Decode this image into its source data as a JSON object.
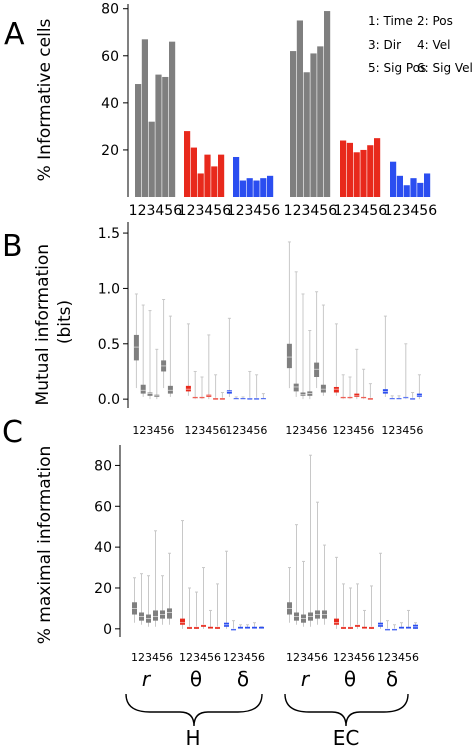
{
  "panels": {
    "a": "A",
    "b": "B",
    "c": "C"
  },
  "legend": [
    "1: Time",
    "2: Pos",
    "3: Dir",
    "4: Vel",
    "5: Sig Pos",
    "6: Sig Vel"
  ],
  "bottom_labels": {
    "group_symbols": [
      "r",
      "θ",
      "δ",
      "r",
      "θ",
      "δ"
    ],
    "regions": [
      "H",
      "EC"
    ]
  },
  "colors": {
    "r": "#7f7f7f",
    "theta": "#e8291c",
    "delta": "#2b4ef0"
  },
  "chart_data": [
    {
      "type": "bar",
      "panel": "A",
      "ylabel": "% Informative cells",
      "ylim": [
        0,
        82
      ],
      "yticks": [
        20,
        40,
        60,
        80
      ],
      "categories": [
        "1",
        "2",
        "3",
        "4",
        "5",
        "6"
      ],
      "groups": [
        {
          "region": "H",
          "band": "r",
          "values": [
            48,
            67,
            32,
            52,
            51,
            66
          ]
        },
        {
          "region": "H",
          "band": "theta",
          "values": [
            28,
            21,
            10,
            18,
            13,
            18
          ]
        },
        {
          "region": "H",
          "band": "delta",
          "values": [
            17,
            7,
            8,
            7,
            8,
            9
          ]
        },
        {
          "region": "EC",
          "band": "r",
          "values": [
            62,
            75,
            53,
            61,
            64,
            79
          ]
        },
        {
          "region": "EC",
          "band": "theta",
          "values": [
            24,
            23,
            19,
            20,
            22,
            25
          ]
        },
        {
          "region": "EC",
          "band": "delta",
          "values": [
            15,
            9,
            5,
            8,
            6,
            10
          ]
        }
      ]
    },
    {
      "type": "box",
      "panel": "B",
      "ylabel": "Mutual information (bits)",
      "ylim": [
        -0.08,
        1.6
      ],
      "yticks": [
        0.0,
        0.5,
        1.0,
        1.5
      ],
      "categories": [
        "1",
        "2",
        "3",
        "4",
        "5",
        "6"
      ],
      "groups": [
        {
          "region": "H",
          "band": "r",
          "boxes": [
            [
              0.1,
              0.35,
              0.47,
              0.58,
              0.95
            ],
            [
              0.02,
              0.05,
              0.08,
              0.13,
              0.85
            ],
            [
              0.0,
              0.03,
              0.05,
              0.06,
              0.8
            ],
            [
              0.0,
              0.02,
              0.03,
              0.04,
              0.45
            ],
            [
              0.1,
              0.25,
              0.3,
              0.35,
              0.9
            ],
            [
              0.02,
              0.05,
              0.08,
              0.12,
              0.75
            ]
          ]
        },
        {
          "region": "H",
          "band": "theta",
          "boxes": [
            [
              0.03,
              0.07,
              0.09,
              0.12,
              0.68
            ],
            [
              0.0,
              0.01,
              0.01,
              0.02,
              0.25
            ],
            [
              0.0,
              0.01,
              0.01,
              0.02,
              0.2
            ],
            [
              0.0,
              0.02,
              0.03,
              0.04,
              0.58
            ],
            [
              0.0,
              0.01,
              0.01,
              0.01,
              0.22
            ],
            [
              0.0,
              0.0,
              0.01,
              0.01,
              0.06
            ]
          ]
        },
        {
          "region": "H",
          "band": "delta",
          "boxes": [
            [
              0.02,
              0.05,
              0.07,
              0.08,
              0.73
            ],
            [
              0.0,
              0.0,
              0.0,
              0.01,
              0.02
            ],
            [
              0.0,
              0.0,
              0.0,
              0.01,
              0.02
            ],
            [
              0.0,
              0.01,
              0.01,
              0.01,
              0.25
            ],
            [
              0.0,
              0.0,
              0.01,
              0.01,
              0.22
            ],
            [
              0.0,
              0.0,
              0.0,
              0.01,
              0.05
            ]
          ]
        },
        {
          "region": "EC",
          "band": "r",
          "boxes": [
            [
              0.1,
              0.28,
              0.38,
              0.5,
              1.42
            ],
            [
              0.02,
              0.07,
              0.11,
              0.14,
              1.15
            ],
            [
              0.0,
              0.03,
              0.04,
              0.06,
              0.95
            ],
            [
              0.0,
              0.03,
              0.05,
              0.07,
              0.62
            ],
            [
              0.1,
              0.2,
              0.27,
              0.33,
              0.97
            ],
            [
              0.03,
              0.06,
              0.09,
              0.13,
              0.85
            ]
          ]
        },
        {
          "region": "EC",
          "band": "theta",
          "boxes": [
            [
              0.03,
              0.06,
              0.09,
              0.11,
              0.68
            ],
            [
              0.0,
              0.01,
              0.01,
              0.02,
              0.22
            ],
            [
              0.0,
              0.01,
              0.01,
              0.02,
              0.2
            ],
            [
              0.0,
              0.02,
              0.03,
              0.05,
              0.45
            ],
            [
              0.0,
              0.01,
              0.01,
              0.02,
              0.27
            ],
            [
              0.0,
              0.0,
              0.01,
              0.01,
              0.14
            ]
          ]
        },
        {
          "region": "EC",
          "band": "delta",
          "boxes": [
            [
              0.02,
              0.05,
              0.07,
              0.09,
              0.75
            ],
            [
              0.0,
              0.0,
              0.0,
              0.01,
              0.03
            ],
            [
              0.0,
              0.0,
              0.0,
              0.01,
              0.03
            ],
            [
              0.0,
              0.01,
              0.01,
              0.02,
              0.5
            ],
            [
              0.0,
              0.0,
              0.01,
              0.01,
              0.06
            ],
            [
              0.0,
              0.02,
              0.03,
              0.05,
              0.22
            ]
          ]
        }
      ]
    },
    {
      "type": "box",
      "panel": "C",
      "ylabel": "% maximal information",
      "ylim": [
        -4,
        90
      ],
      "yticks": [
        0,
        20,
        40,
        60,
        80
      ],
      "categories": [
        "1",
        "2",
        "3",
        "4",
        "5",
        "6"
      ],
      "groups": [
        {
          "region": "H",
          "band": "r",
          "boxes": [
            [
              3,
              7,
              10,
              13,
              25
            ],
            [
              2,
              4,
              6,
              8,
              27
            ],
            [
              1,
              3,
              5,
              7,
              26
            ],
            [
              1,
              4,
              6,
              9,
              48
            ],
            [
              2,
              5,
              7,
              9,
              26
            ],
            [
              2,
              5,
              8,
              10,
              37
            ]
          ]
        },
        {
          "region": "H",
          "band": "theta",
          "boxes": [
            [
              0,
              2,
              3,
              5,
              53
            ],
            [
              0,
              0,
              1,
              1,
              20
            ],
            [
              0,
              0,
              1,
              1,
              18
            ],
            [
              0,
              1,
              2,
              2,
              30
            ],
            [
              0,
              0,
              0,
              1,
              9
            ],
            [
              0,
              0,
              1,
              1,
              22
            ]
          ]
        },
        {
          "region": "H",
          "band": "delta",
          "boxes": [
            [
              0,
              1,
              2,
              3,
              38
            ],
            [
              0,
              0,
              0,
              0,
              4
            ],
            [
              0,
              0,
              0,
              1,
              2
            ],
            [
              0,
              0,
              0,
              1,
              2
            ],
            [
              0,
              0,
              0,
              1,
              3
            ],
            [
              0,
              0,
              0,
              1,
              1
            ]
          ]
        },
        {
          "region": "EC",
          "band": "r",
          "boxes": [
            [
              3,
              7,
              10,
              13,
              30
            ],
            [
              2,
              4,
              6,
              8,
              51
            ],
            [
              1,
              3,
              5,
              7,
              33
            ],
            [
              1,
              4,
              6,
              8,
              85
            ],
            [
              2,
              5,
              7,
              9,
              62
            ],
            [
              2,
              5,
              7,
              9,
              41
            ]
          ]
        },
        {
          "region": "EC",
          "band": "theta",
          "boxes": [
            [
              0,
              2,
              3,
              5,
              35
            ],
            [
              0,
              0,
              1,
              1,
              22
            ],
            [
              0,
              0,
              1,
              1,
              20
            ],
            [
              0,
              1,
              2,
              2,
              22
            ],
            [
              0,
              0,
              0,
              1,
              9
            ],
            [
              0,
              0,
              1,
              1,
              21
            ]
          ]
        },
        {
          "region": "EC",
          "band": "delta",
          "boxes": [
            [
              0,
              1,
              2,
              3,
              37
            ],
            [
              0,
              0,
              0,
              0,
              4
            ],
            [
              0,
              0,
              0,
              0,
              2
            ],
            [
              0,
              0,
              0,
              1,
              3
            ],
            [
              0,
              0,
              0,
              1,
              9
            ],
            [
              0,
              0,
              1,
              2,
              3
            ]
          ]
        }
      ]
    }
  ]
}
